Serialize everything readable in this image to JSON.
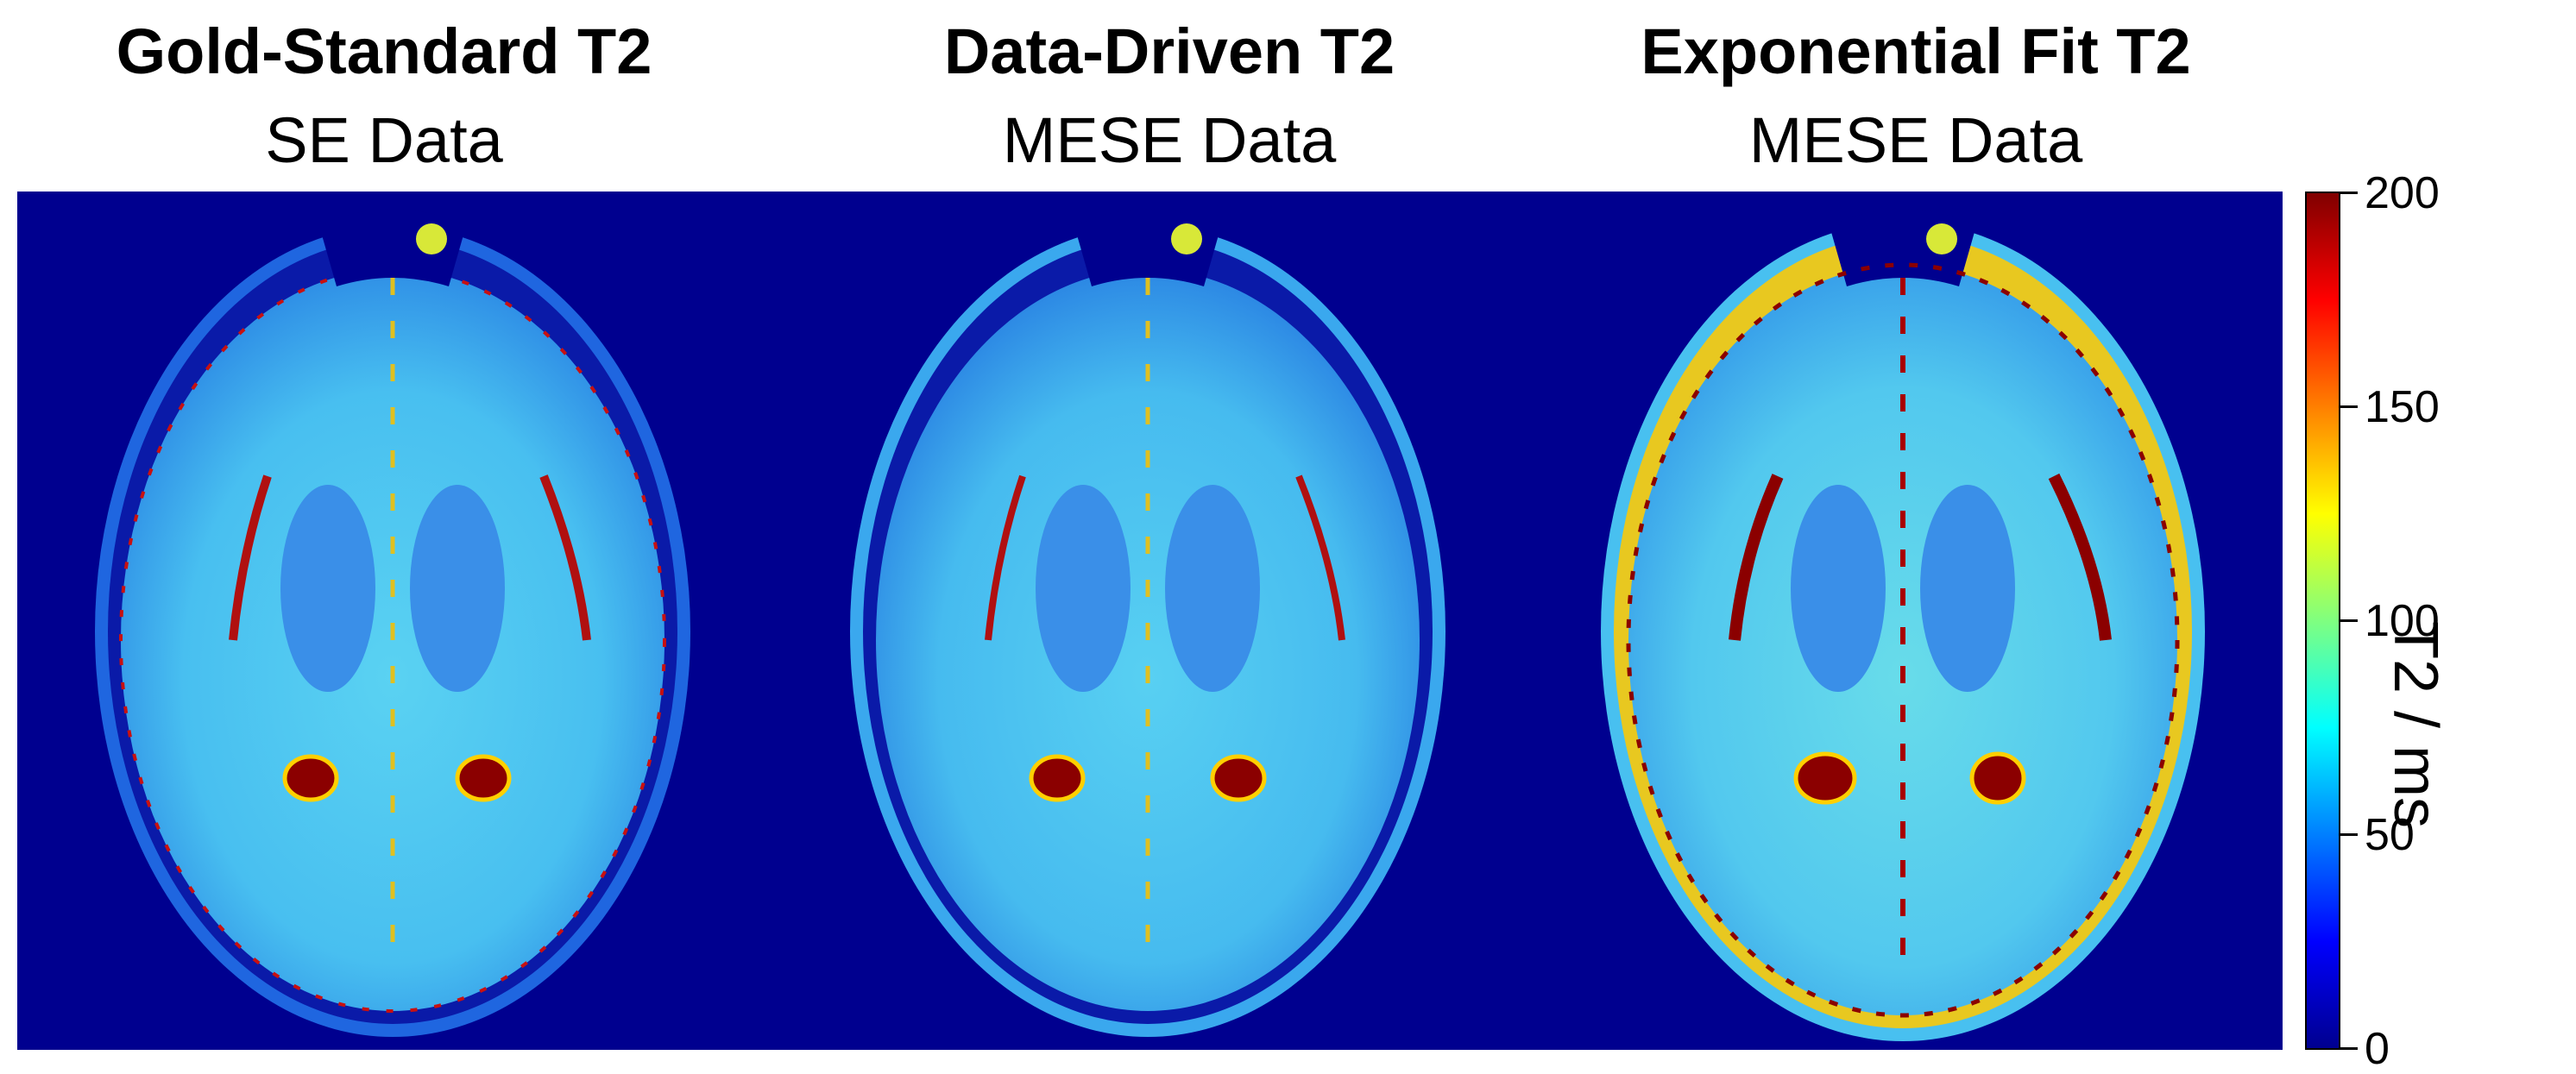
{
  "panels": [
    {
      "title": "Gold-Standard T2",
      "subtitle": "SE Data"
    },
    {
      "title": "Data-Driven T2",
      "subtitle": "MESE Data"
    },
    {
      "title": "Exponential Fit T2",
      "subtitle": "MESE Data"
    }
  ],
  "colorbar": {
    "label": "T2 / ms",
    "ticks": [
      "200",
      "150",
      "100",
      "50",
      "0"
    ],
    "range": [
      0,
      200
    ],
    "colormap": "jet"
  },
  "colors": {
    "background": "#00008f",
    "tissue_light": "#4cc8f0",
    "tissue_mid": "#38a0ea",
    "ventricle": "#2a6ee0",
    "csf_high": "#8b0000",
    "csf_edge": "#ffd000"
  }
}
